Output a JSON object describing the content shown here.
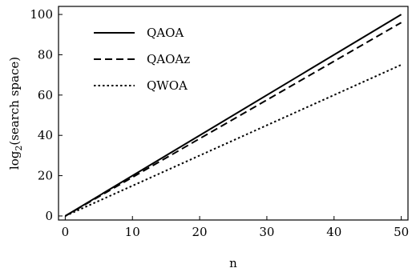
{
  "chart_data": {
    "type": "line",
    "x": [
      0,
      50
    ],
    "series": [
      {
        "name": "QAOA",
        "values": [
          0,
          100
        ],
        "dash": "solid",
        "color": "#000000"
      },
      {
        "name": "QAOAz",
        "values": [
          0,
          96
        ],
        "dash": "dashed",
        "color": "#000000"
      },
      {
        "name": "QWOA",
        "values": [
          0,
          75
        ],
        "dash": "dotted",
        "color": "#000000"
      }
    ],
    "xlabel": "n",
    "ylabel_main": "log",
    "ylabel_sub": "2",
    "ylabel_rest": "(search space)",
    "xlim": [
      -1,
      51
    ],
    "ylim": [
      -2,
      104
    ],
    "xticks": [
      0,
      10,
      20,
      30,
      40,
      50
    ],
    "yticks": [
      0,
      20,
      40,
      60,
      80,
      100
    ],
    "grid": false,
    "legend_position": "top-left"
  }
}
